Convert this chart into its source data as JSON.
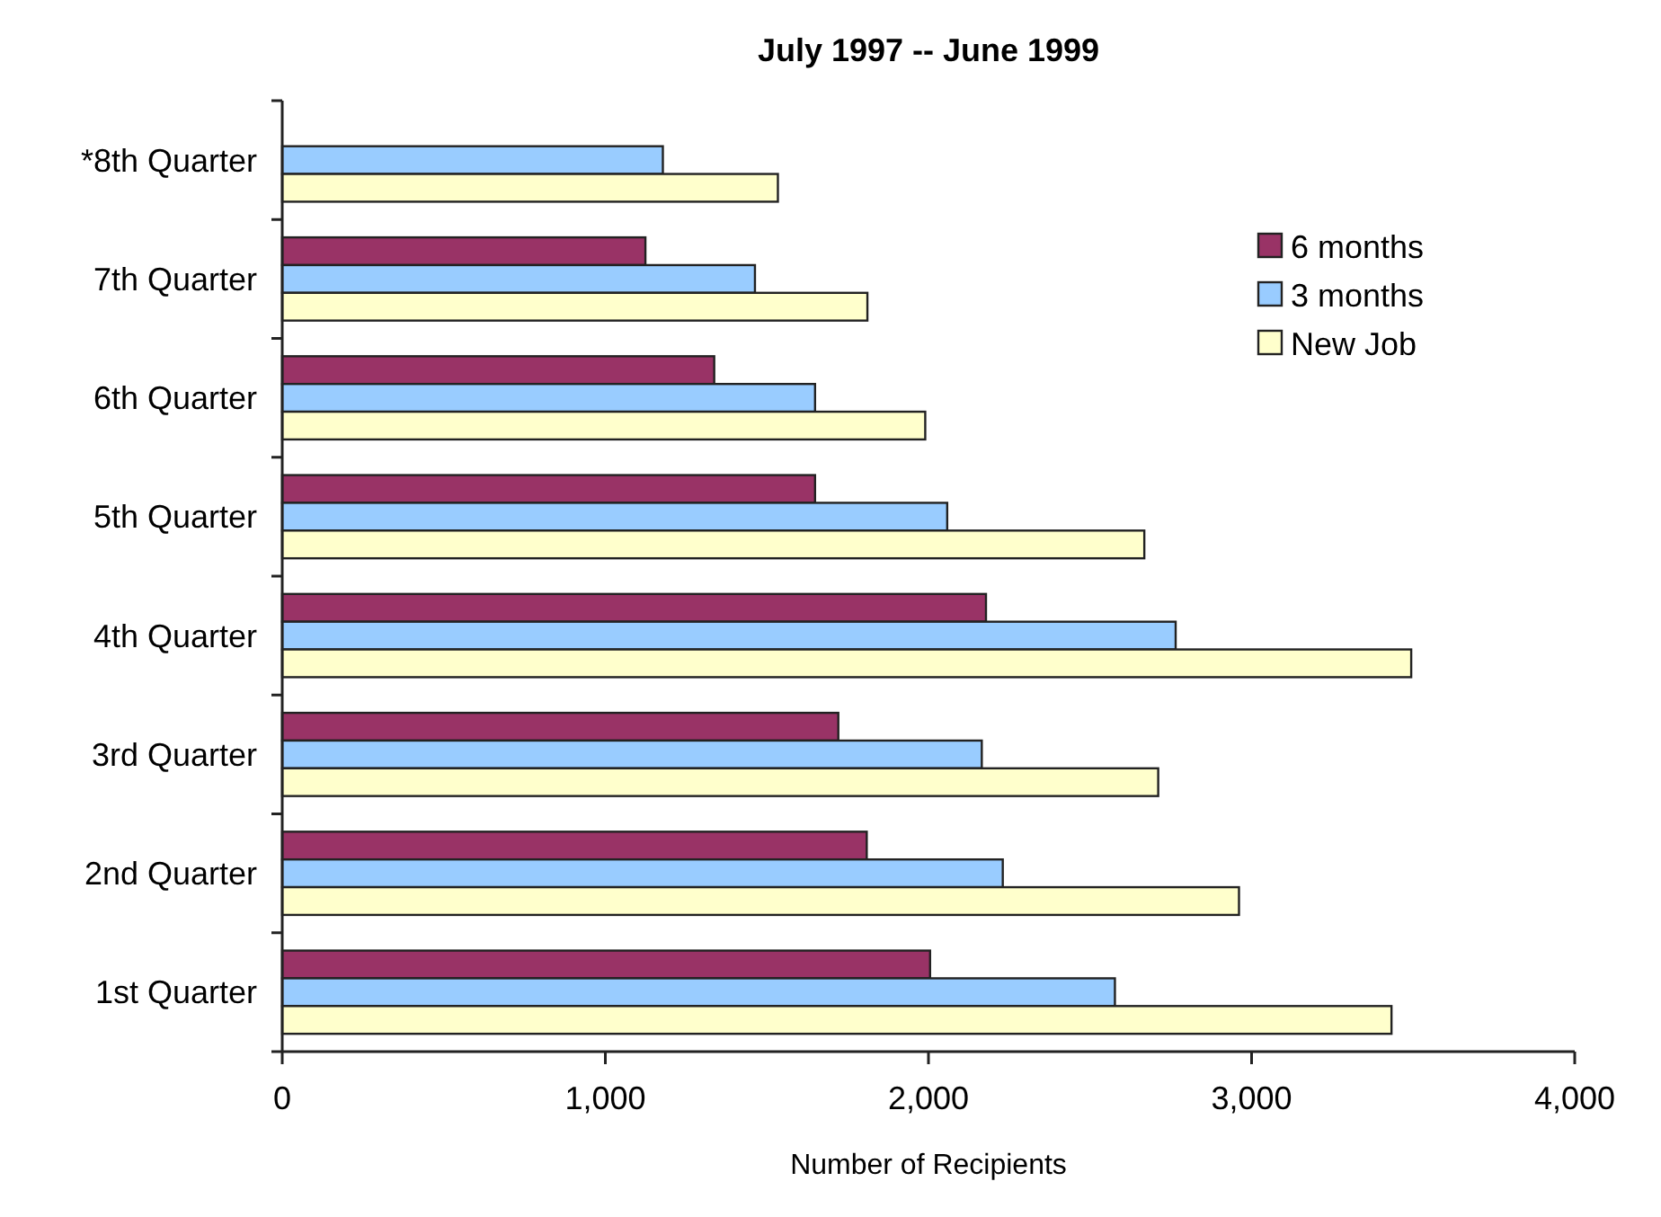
{
  "chart_data": {
    "type": "bar",
    "orientation": "horizontal",
    "title": "July 1997 -- June 1999",
    "xlabel": "Number of Recipients",
    "categories": [
      "*8th Quarter",
      "7th Quarter",
      "6th Quarter",
      "5th Quarter",
      "4th Quarter",
      "3rd Quarter",
      "2nd Quarter",
      "1st Quarter"
    ],
    "series": [
      {
        "name": "6 months",
        "color": "#993366",
        "values": [
          null,
          1124,
          1337,
          1649,
          2178,
          1721,
          1809,
          2005
        ]
      },
      {
        "name": "3 months",
        "color": "#99ccff",
        "values": [
          1178,
          1463,
          1649,
          2058,
          2765,
          2165,
          2230,
          2577
        ]
      },
      {
        "name": "New Job",
        "color": "#ffffcc",
        "values": [
          1534,
          1811,
          1990,
          2668,
          3494,
          2711,
          2961,
          3433
        ]
      }
    ],
    "xlim": [
      0,
      4000
    ],
    "xticks": [
      {
        "value": 0,
        "label": "0"
      },
      {
        "value": 1000,
        "label": "1,000"
      },
      {
        "value": 2000,
        "label": "2,000"
      },
      {
        "value": 3000,
        "label": "3,000"
      },
      {
        "value": 4000,
        "label": "4,000"
      }
    ],
    "grid": false,
    "legend": "top right"
  }
}
